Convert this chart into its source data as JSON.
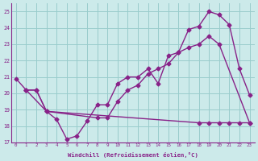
{
  "line1_x": [
    0,
    1,
    2,
    3,
    4,
    5,
    6,
    7,
    8,
    9,
    10,
    11,
    12,
    13,
    14,
    15,
    16,
    17,
    18,
    19,
    20,
    21,
    22,
    23
  ],
  "line1_y": [
    20.9,
    20.2,
    20.2,
    18.9,
    18.4,
    17.2,
    17.4,
    18.3,
    19.3,
    19.3,
    20.6,
    21.0,
    21.0,
    21.5,
    20.6,
    22.3,
    22.5,
    23.9,
    24.1,
    25.0,
    24.8,
    24.2,
    21.5,
    19.9
  ],
  "line2_x": [
    1,
    2,
    3,
    8,
    9,
    10,
    11,
    12,
    13,
    14,
    15,
    16,
    17,
    18,
    19,
    20,
    23
  ],
  "line2_y": [
    20.2,
    20.2,
    18.9,
    18.5,
    18.5,
    19.5,
    20.2,
    20.5,
    21.2,
    21.5,
    21.8,
    22.5,
    22.8,
    23.0,
    23.5,
    23.0,
    18.2
  ],
  "line3_x": [
    1,
    3,
    18,
    19,
    20,
    21,
    22,
    23
  ],
  "line3_y": [
    20.2,
    18.9,
    18.2,
    18.2,
    18.2,
    18.2,
    18.2,
    18.2
  ],
  "color": "#882288",
  "bg_color": "#cceaea",
  "grid_color": "#99cccc",
  "xlabel": "Windchill (Refroidissement éolien,°C)",
  "xlim": [
    -0.5,
    23.5
  ],
  "ylim": [
    17,
    25.5
  ],
  "yticks": [
    17,
    18,
    19,
    20,
    21,
    22,
    23,
    24,
    25
  ],
  "xticks": [
    0,
    1,
    2,
    3,
    4,
    5,
    6,
    7,
    8,
    9,
    10,
    11,
    12,
    13,
    14,
    15,
    16,
    17,
    18,
    19,
    20,
    21,
    22,
    23
  ],
  "marker": "D",
  "markersize": 2.5,
  "linewidth": 1.0
}
